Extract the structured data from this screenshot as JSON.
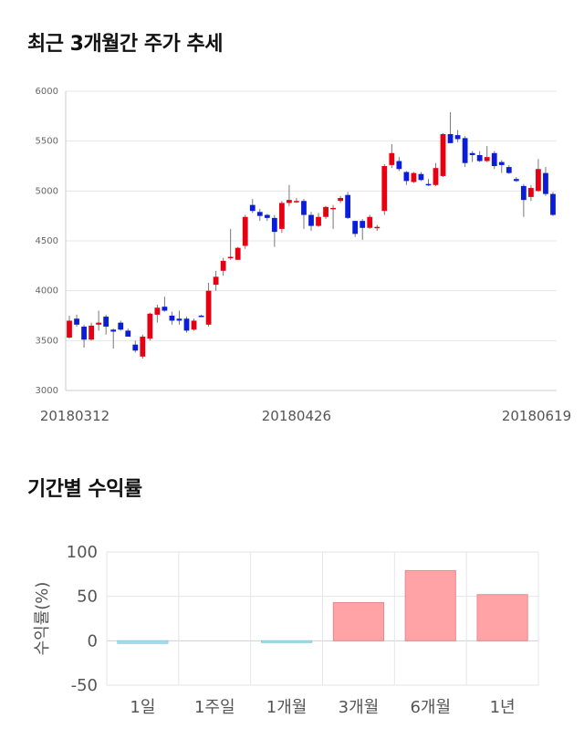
{
  "section1": {
    "title": "최근 3개월간 주가 추세"
  },
  "section2": {
    "title": "기간별 수익률"
  },
  "colors": {
    "up": "#e60012",
    "down": "#0a1ed8",
    "pos_bar": "#ffa3a6",
    "neg_bar": "#a8dcee",
    "grid": "#e6e6e6"
  },
  "chart_data": [
    {
      "type": "candlestick",
      "title": "최근 3개월간 주가 추세",
      "ylim": [
        3000,
        6000
      ],
      "y_ticks": [
        3000,
        3500,
        4000,
        4500,
        5000,
        5500,
        6000
      ],
      "x_tick_labels": [
        {
          "label": "20180312",
          "index": 0
        },
        {
          "label": "20180426",
          "index": 31
        },
        {
          "label": "20180619",
          "index": 67
        }
      ],
      "candles": [
        [
          3530,
          3700,
          3750,
          3520
        ],
        [
          3720,
          3660,
          3760,
          3640
        ],
        [
          3640,
          3510,
          3660,
          3430
        ],
        [
          3510,
          3650,
          3680,
          3500
        ],
        [
          3660,
          3680,
          3800,
          3600
        ],
        [
          3740,
          3640,
          3760,
          3560
        ],
        [
          3610,
          3590,
          3620,
          3420
        ],
        [
          3680,
          3610,
          3700,
          3600
        ],
        [
          3600,
          3540,
          3620,
          3540
        ],
        [
          3460,
          3400,
          3500,
          3380
        ],
        [
          3340,
          3540,
          3560,
          3320
        ],
        [
          3520,
          3770,
          3780,
          3500
        ],
        [
          3760,
          3830,
          3860,
          3680
        ],
        [
          3840,
          3800,
          3940,
          3790
        ],
        [
          3750,
          3700,
          3790,
          3660
        ],
        [
          3720,
          3700,
          3800,
          3660
        ],
        [
          3720,
          3600,
          3740,
          3580
        ],
        [
          3610,
          3700,
          3720,
          3600
        ],
        [
          3750,
          3740,
          3760,
          3740
        ],
        [
          3660,
          4000,
          4080,
          3640
        ],
        [
          4060,
          4140,
          4200,
          4000
        ],
        [
          4200,
          4300,
          4330,
          4150
        ],
        [
          4330,
          4340,
          4620,
          4310
        ],
        [
          4310,
          4430,
          4440,
          4310
        ],
        [
          4450,
          4740,
          4760,
          4420
        ],
        [
          4860,
          4800,
          4920,
          4780
        ],
        [
          4790,
          4750,
          4820,
          4700
        ],
        [
          4760,
          4730,
          4770,
          4700
        ],
        [
          4730,
          4590,
          4760,
          4440
        ],
        [
          4620,
          4880,
          4900,
          4580
        ],
        [
          4880,
          4910,
          5060,
          4850
        ],
        [
          4900,
          4900,
          4930,
          4880
        ],
        [
          4900,
          4760,
          4920,
          4620
        ],
        [
          4760,
          4650,
          4790,
          4600
        ],
        [
          4650,
          4740,
          4780,
          4640
        ],
        [
          4740,
          4840,
          4850,
          4720
        ],
        [
          4830,
          4830,
          4860,
          4620
        ],
        [
          4900,
          4930,
          4950,
          4880
        ],
        [
          4960,
          4730,
          4990,
          4720
        ],
        [
          4700,
          4570,
          4700,
          4540
        ],
        [
          4700,
          4630,
          4720,
          4510
        ],
        [
          4630,
          4740,
          4760,
          4620
        ],
        [
          4640,
          4640,
          4660,
          4600
        ],
        [
          4800,
          5250,
          5270,
          4760
        ],
        [
          5260,
          5380,
          5470,
          5230
        ],
        [
          5300,
          5220,
          5340,
          5200
        ],
        [
          5190,
          5100,
          5200,
          5060
        ],
        [
          5090,
          5180,
          5190,
          5080
        ],
        [
          5170,
          5110,
          5190,
          5100
        ],
        [
          5070,
          5060,
          5120,
          5050
        ],
        [
          5060,
          5230,
          5280,
          5050
        ],
        [
          5150,
          5570,
          5580,
          5140
        ],
        [
          5570,
          5480,
          5790,
          5480
        ],
        [
          5560,
          5520,
          5610,
          5490
        ],
        [
          5530,
          5280,
          5550,
          5240
        ],
        [
          5380,
          5360,
          5400,
          5290
        ],
        [
          5360,
          5300,
          5400,
          5290
        ],
        [
          5300,
          5340,
          5450,
          5290
        ],
        [
          5380,
          5250,
          5400,
          5220
        ],
        [
          5290,
          5260,
          5310,
          5180
        ],
        [
          5240,
          5180,
          5260,
          5170
        ],
        [
          5120,
          5100,
          5140,
          5090
        ],
        [
          5050,
          4910,
          5070,
          4740
        ],
        [
          4940,
          5030,
          5060,
          4900
        ],
        [
          5000,
          5220,
          5320,
          4990
        ],
        [
          5180,
          4970,
          5240,
          4950
        ],
        [
          4970,
          4760,
          4990,
          4750
        ]
      ]
    },
    {
      "type": "bar",
      "title": "기간별 수익률",
      "ylabel": "수익률(%)",
      "ylim": [
        -50,
        100
      ],
      "y_ticks": [
        100,
        50,
        0,
        -50
      ],
      "categories": [
        "1일",
        "1주일",
        "1개월",
        "3개월",
        "6개월",
        "1년"
      ],
      "values": [
        -3,
        0,
        -2,
        43,
        79,
        52
      ]
    }
  ]
}
